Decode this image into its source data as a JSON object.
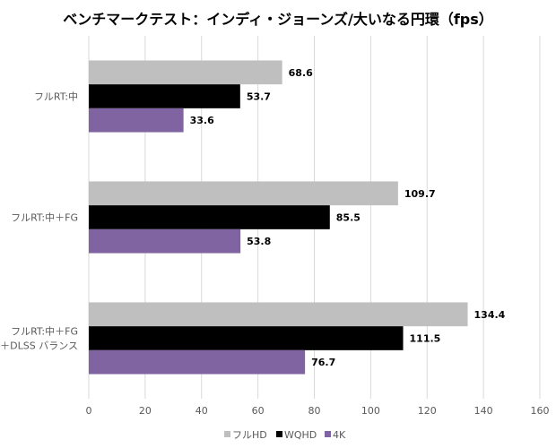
{
  "chart_data": {
    "type": "bar",
    "orientation": "horizontal",
    "title": "ベンチマークテスト：インディ・ジョーンズ/大いなる円環（fps）",
    "categories": [
      [
        "フルRT:中"
      ],
      [
        "フルRT:中＋FG"
      ],
      [
        "フルRT:中＋FG",
        "＋DLSS バランス"
      ]
    ],
    "series": [
      {
        "name": "フルHD",
        "color": "#bfbfbf",
        "values": [
          68.6,
          109.7,
          134.4
        ]
      },
      {
        "name": "WQHD",
        "color": "#000000",
        "values": [
          53.7,
          85.5,
          111.5
        ]
      },
      {
        "name": "4K",
        "color": "#8064a2",
        "values": [
          33.6,
          53.8,
          76.7
        ]
      }
    ],
    "xlim": [
      0,
      160
    ],
    "xticks": [
      "0",
      "20",
      "40",
      "60",
      "80",
      "100",
      "120",
      "140",
      "160"
    ],
    "grid": true,
    "legend": "bottom"
  }
}
